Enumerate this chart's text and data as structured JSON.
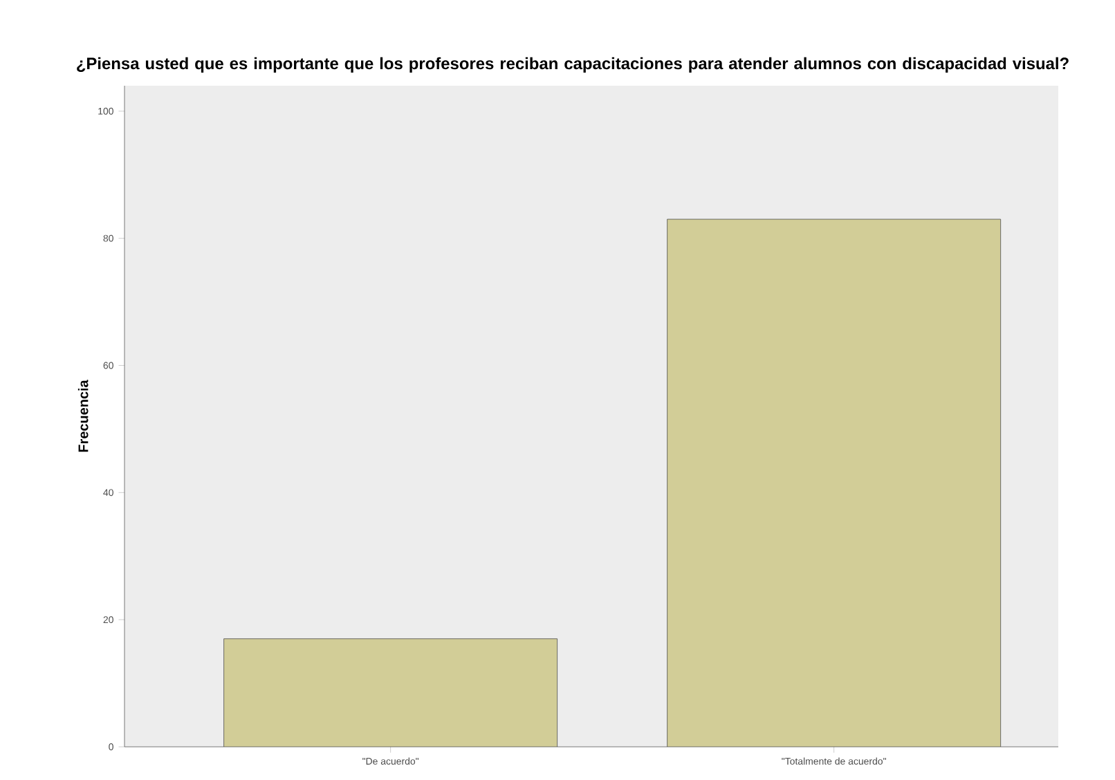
{
  "chart_data": {
    "type": "bar",
    "title": "¿Piensa usted que es importante que los profesores reciban capacitaciones para atender alumnos con discapacidad visual?",
    "ylabel": "Frecuencia",
    "categories": [
      "\"De acuerdo\"",
      "\"Totalmente de acuerdo\""
    ],
    "values": [
      17,
      83
    ],
    "color": "#d2cd97",
    "ylim": [
      0,
      104
    ],
    "yticks": [
      0,
      20,
      40,
      60,
      80,
      100
    ],
    "grid": false
  }
}
